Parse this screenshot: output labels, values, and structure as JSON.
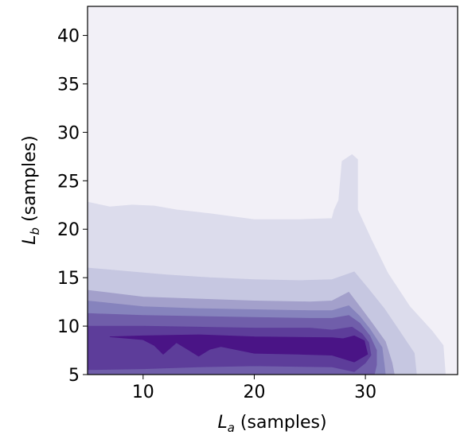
{
  "chart_data": {
    "type": "contour",
    "xlabel": {
      "main": "L",
      "sub": "a",
      "rest": " (samples)"
    },
    "ylabel": {
      "main": "L",
      "sub": "b",
      "rest": " (samples)"
    },
    "xlim": [
      5,
      38.3
    ],
    "ylim": [
      5,
      43
    ],
    "xticks": [
      10,
      20,
      30
    ],
    "yticks": [
      5,
      10,
      15,
      20,
      25,
      30,
      35,
      40
    ],
    "colormap": "Purples",
    "levels": [
      {
        "color": "#f2f0f7",
        "boundary": [
          [
            5,
            5
          ],
          [
            5,
            43
          ],
          [
            38.3,
            43
          ],
          [
            38.3,
            5
          ]
        ]
      },
      {
        "color": "#dcdcec",
        "boundary": [
          [
            5,
            5
          ],
          [
            5,
            22.8
          ],
          [
            7,
            22.3
          ],
          [
            9,
            22.5
          ],
          [
            11,
            22.4
          ],
          [
            13,
            22.0
          ],
          [
            16,
            21.6
          ],
          [
            20,
            21.0
          ],
          [
            24,
            21.0
          ],
          [
            27,
            21.1
          ],
          [
            27.2,
            22.0
          ],
          [
            27.6,
            23.0
          ],
          [
            27.9,
            27.0
          ],
          [
            28.8,
            27.7
          ],
          [
            29.3,
            27.2
          ],
          [
            29.3,
            22.0
          ],
          [
            30.5,
            19.0
          ],
          [
            32.0,
            15.5
          ],
          [
            34.0,
            12.0
          ],
          [
            36.0,
            9.5
          ],
          [
            37.0,
            8.0
          ],
          [
            37.2,
            5
          ]
        ]
      },
      {
        "color": "#c6c7e1",
        "boundary": [
          [
            5,
            5
          ],
          [
            5,
            16.0
          ],
          [
            8,
            15.7
          ],
          [
            12,
            15.3
          ],
          [
            16,
            15.0
          ],
          [
            20,
            14.8
          ],
          [
            24,
            14.7
          ],
          [
            27,
            14.8
          ],
          [
            29,
            15.6
          ],
          [
            30.3,
            13.8
          ],
          [
            31.7,
            11.8
          ],
          [
            33.0,
            9.6
          ],
          [
            34.4,
            7.2
          ],
          [
            34.6,
            5
          ]
        ]
      },
      {
        "color": "#a3a0cb",
        "boundary": [
          [
            5,
            5
          ],
          [
            5,
            13.7
          ],
          [
            10,
            13.0
          ],
          [
            15,
            12.8
          ],
          [
            20,
            12.6
          ],
          [
            25,
            12.5
          ],
          [
            27,
            12.6
          ],
          [
            28.5,
            13.5
          ],
          [
            29.5,
            12.0
          ],
          [
            30.6,
            10.3
          ],
          [
            31.8,
            8.4
          ],
          [
            32.4,
            6.2
          ],
          [
            32.6,
            5
          ]
        ]
      },
      {
        "color": "#8683bd",
        "boundary": [
          [
            5,
            5
          ],
          [
            5,
            12.6
          ],
          [
            10,
            12.0
          ],
          [
            15,
            11.8
          ],
          [
            20,
            11.7
          ],
          [
            25,
            11.6
          ],
          [
            27,
            11.6
          ],
          [
            28.5,
            12.1
          ],
          [
            29.5,
            11.0
          ],
          [
            30.4,
            9.7
          ],
          [
            31.5,
            7.8
          ],
          [
            31.7,
            6.0
          ],
          [
            31.8,
            5
          ]
        ]
      },
      {
        "color": "#705eaa",
        "boundary": [
          [
            5,
            5
          ],
          [
            5,
            11.3
          ],
          [
            10,
            11.1
          ],
          [
            15,
            11.0
          ],
          [
            20,
            10.9
          ],
          [
            25,
            10.8
          ],
          [
            27,
            10.8
          ],
          [
            28.5,
            11.1
          ],
          [
            29.5,
            10.3
          ],
          [
            30.4,
            9.0
          ],
          [
            31.0,
            7.5
          ],
          [
            31.0,
            6.0
          ],
          [
            30.8,
            5
          ]
        ]
      },
      {
        "color": "#5d3d9a",
        "boundary": [
          [
            5,
            5.5
          ],
          [
            5,
            10.0
          ],
          [
            10,
            10.0
          ],
          [
            15,
            9.9
          ],
          [
            20,
            9.8
          ],
          [
            25,
            9.8
          ],
          [
            27,
            9.6
          ],
          [
            28.8,
            9.9
          ],
          [
            29.7,
            9.2
          ],
          [
            30.3,
            8.3
          ],
          [
            30.5,
            7.0
          ],
          [
            30.0,
            6.2
          ],
          [
            29.0,
            5.3
          ],
          [
            27,
            5.8
          ],
          [
            20,
            5.9
          ],
          [
            15,
            5.8
          ],
          [
            10,
            5.6
          ],
          [
            5,
            5.5
          ]
        ]
      },
      {
        "color": "#4a1486",
        "boundary": [
          [
            7,
            8.9
          ],
          [
            10,
            8.6
          ],
          [
            11,
            8.0
          ],
          [
            11.8,
            7.1
          ],
          [
            13,
            8.3
          ],
          [
            14,
            7.6
          ],
          [
            15,
            6.9
          ],
          [
            16,
            7.6
          ],
          [
            17,
            7.9
          ],
          [
            20,
            7.2
          ],
          [
            24,
            7.1
          ],
          [
            27,
            7.0
          ],
          [
            29,
            6.3
          ],
          [
            30.2,
            7.1
          ],
          [
            29.9,
            8.5
          ],
          [
            29.0,
            9.0
          ],
          [
            28,
            8.7
          ],
          [
            27,
            8.8
          ],
          [
            20,
            8.9
          ],
          [
            15,
            9.1
          ],
          [
            10,
            9.0
          ],
          [
            7,
            8.9
          ]
        ]
      }
    ]
  }
}
